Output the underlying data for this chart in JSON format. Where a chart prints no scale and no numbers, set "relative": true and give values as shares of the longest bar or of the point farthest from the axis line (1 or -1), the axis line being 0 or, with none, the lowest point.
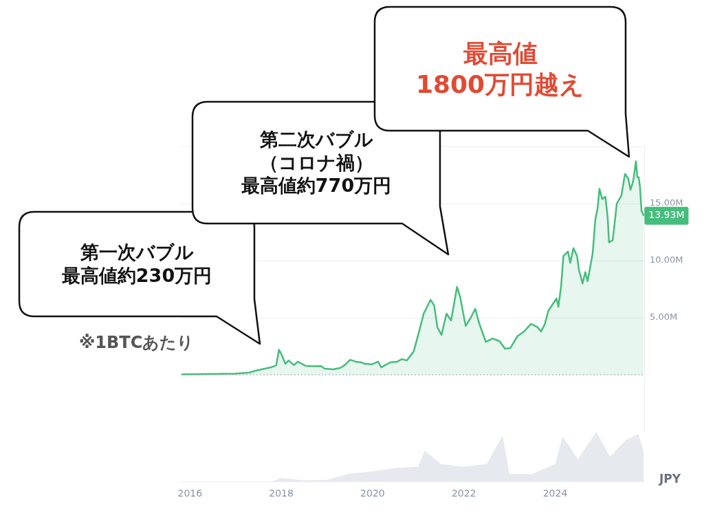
{
  "chart_data": [
    {
      "type": "area",
      "ylabel": "JPY",
      "tick_labels": "y",
      "xlim": [
        2015.8,
        2025.95
      ],
      "ylim": [
        -5,
        20
      ],
      "yticks": [
        {
          "value": 5,
          "label": "5.00M"
        },
        {
          "value": 10,
          "label": "10.00M"
        },
        {
          "value": 15,
          "label": "15.00M"
        },
        {
          "value": 20,
          "label": null
        }
      ],
      "grid": "y",
      "legend": false,
      "marker": "none",
      "ref_lines": [
        {
          "axis": "y",
          "value": 0,
          "color": "#9aa0a8",
          "line_style": "dotted"
        }
      ],
      "series": [
        {
          "color": "#45bd7c",
          "x": [
            2015.82,
            2016.5,
            2017.0,
            2017.3,
            2017.44,
            2017.78,
            2017.89,
            2017.95,
            2018.01,
            2018.09,
            2018.16,
            2018.28,
            2018.36,
            2018.54,
            2018.69,
            2018.87,
            2018.95,
            2019.14,
            2019.29,
            2019.39,
            2019.51,
            2019.63,
            2019.74,
            2019.84,
            2019.99,
            2020.12,
            2020.19,
            2020.39,
            2020.54,
            2020.64,
            2020.75,
            2020.9,
            2021.02,
            2021.12,
            2021.27,
            2021.35,
            2021.42,
            2021.51,
            2021.62,
            2021.72,
            2021.85,
            2021.92,
            2022.04,
            2022.15,
            2022.25,
            2022.33,
            2022.48,
            2022.63,
            2022.78,
            2022.9,
            2023.02,
            2023.17,
            2023.32,
            2023.47,
            2023.62,
            2023.69,
            2023.77,
            2023.85,
            2024.03,
            2024.07,
            2024.13,
            2024.18,
            2024.28,
            2024.33,
            2024.4,
            2024.48,
            2024.52,
            2024.6,
            2024.66,
            2024.71,
            2024.82,
            2024.88,
            2024.93,
            2024.97,
            2025.03,
            2025.1,
            2025.15,
            2025.18,
            2025.26,
            2025.3,
            2025.35,
            2025.45,
            2025.53,
            2025.6,
            2025.65,
            2025.71,
            2025.77,
            2025.8,
            2025.83,
            2025.86,
            2025.89,
            2025.94
          ],
          "values": [
            0.05,
            0.07,
            0.11,
            0.2,
            0.36,
            0.66,
            0.84,
            2.2,
            1.75,
            0.96,
            1.26,
            0.85,
            1.15,
            0.78,
            0.75,
            0.77,
            0.54,
            0.48,
            0.6,
            0.85,
            1.32,
            1.15,
            1.1,
            0.96,
            0.92,
            1.15,
            0.66,
            1.1,
            1.15,
            1.38,
            1.26,
            2.04,
            3.8,
            5.36,
            6.57,
            6.08,
            4.16,
            3.5,
            5.36,
            4.76,
            7.71,
            6.8,
            4.28,
            5.0,
            5.78,
            4.58,
            2.89,
            3.19,
            2.95,
            2.29,
            2.35,
            3.37,
            3.8,
            4.46,
            4.16,
            3.8,
            4.4,
            5.6,
            6.69,
            5.96,
            7.77,
            10.4,
            10.8,
            9.8,
            11.1,
            10.4,
            9.2,
            8.0,
            9.0,
            8.2,
            10.6,
            13.6,
            14.6,
            16.3,
            15.4,
            15.6,
            13.8,
            11.6,
            11.8,
            13.2,
            15.0,
            15.7,
            17.6,
            17.2,
            16.2,
            17.0,
            18.7,
            17.3,
            17.3,
            16.4,
            14.4,
            13.93
          ]
        }
      ],
      "annotations": [
        "第一次バブル",
        "最高値約230万円",
        "第二次バブル",
        "（コロナ禍）",
        "最高値約770万円",
        "最高値",
        "1800万円越え",
        "※1BTCあたり",
        {
          "text": "13.93M",
          "x": 2025.94,
          "y": 13.93
        }
      ]
    },
    {
      "type": "area",
      "relative": true,
      "tick_labels": "x",
      "legend": false,
      "xlim": [
        2015.8,
        2025.95
      ],
      "xticks": [
        2016,
        2018,
        2020,
        2022,
        2024
      ],
      "series": [
        {
          "color": "#e6eaee",
          "x": [
            2015.82,
            2017.8,
            2018.0,
            2018.5,
            2019.0,
            2019.5,
            2020.0,
            2020.5,
            2021.0,
            2021.14,
            2021.5,
            2022.0,
            2022.5,
            2022.85,
            2023.0,
            2023.5,
            2024.0,
            2024.16,
            2024.5,
            2024.9,
            2025.2,
            2025.55,
            2025.82,
            2025.94
          ],
          "values": [
            0,
            0,
            0.07,
            0.02,
            0.03,
            0.16,
            0.2,
            0.27,
            0.3,
            0.62,
            0.35,
            0.3,
            0.35,
            0.93,
            0.15,
            0.15,
            0.35,
            0.91,
            0.45,
            1,
            0.5,
            0.84,
            0.96,
            0.6
          ]
        }
      ]
    }
  ]
}
